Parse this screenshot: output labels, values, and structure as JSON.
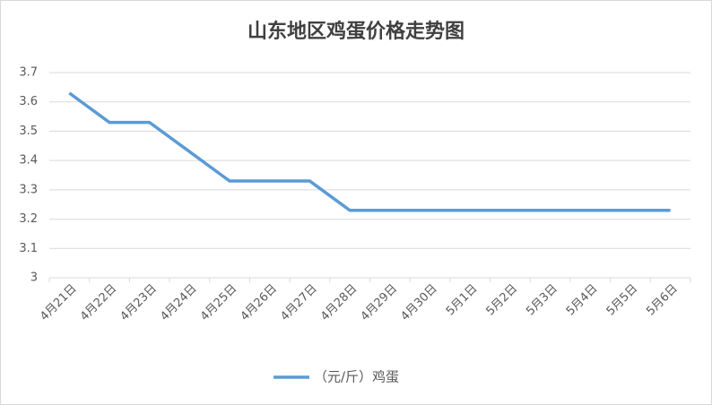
{
  "chart_data": {
    "type": "line",
    "title": "山东地区鸡蛋价格走势图",
    "categories": [
      "4月21日",
      "4月22日",
      "4月23日",
      "4月24日",
      "4月25日",
      "4月26日",
      "4月27日",
      "4月28日",
      "4月29日",
      "4月30日",
      "5月1日",
      "5月2日",
      "5月3日",
      "5月4日",
      "5月5日",
      "5月6日"
    ],
    "series": [
      {
        "name": "（元/斤）鸡蛋",
        "color": "#5b9bd5",
        "values": [
          3.63,
          3.53,
          3.53,
          3.43,
          3.33,
          3.33,
          3.33,
          3.23,
          3.23,
          3.23,
          3.23,
          3.23,
          3.23,
          3.23,
          3.23,
          3.23
        ]
      }
    ],
    "ylim": [
      3,
      3.7
    ],
    "yticks": [
      3,
      3.1,
      3.2,
      3.3,
      3.4,
      3.5,
      3.6,
      3.7
    ],
    "grid": true,
    "legend": "bottom"
  }
}
